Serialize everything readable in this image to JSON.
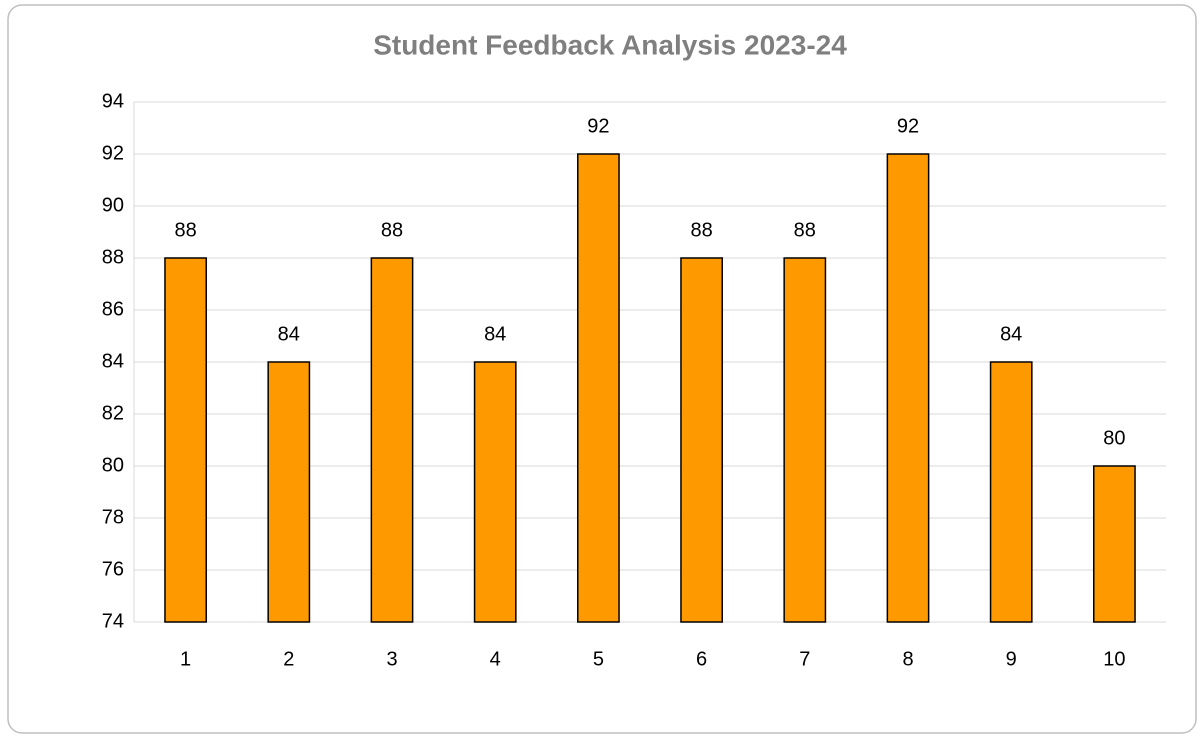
{
  "chart_data": {
    "type": "bar",
    "title": "Student Feedback Analysis 2023-24",
    "categories": [
      "1",
      "2",
      "3",
      "4",
      "5",
      "6",
      "7",
      "8",
      "9",
      "10"
    ],
    "values": [
      88,
      84,
      88,
      84,
      92,
      88,
      88,
      92,
      84,
      80
    ],
    "color": "#ff9900",
    "ylim": [
      74,
      94
    ],
    "yticks": [
      74,
      76,
      78,
      80,
      82,
      84,
      86,
      88,
      90,
      92,
      94
    ],
    "grid": true
  }
}
